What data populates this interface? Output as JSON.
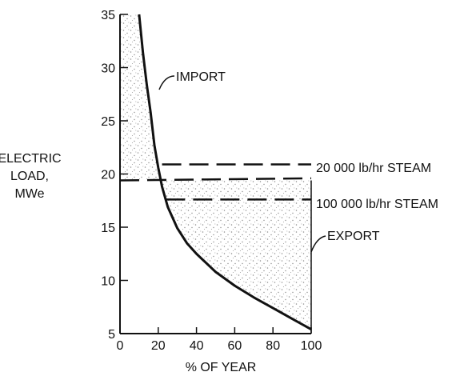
{
  "chart_data": {
    "type": "line",
    "xlabel": "% OF YEAR",
    "ylabel": [
      "ELECTRIC",
      "LOAD,",
      "MWe"
    ],
    "xlim": [
      0,
      100
    ],
    "ylim": [
      5,
      35
    ],
    "xticks": [
      0,
      20,
      40,
      60,
      80,
      100
    ],
    "yticks": [
      5,
      10,
      15,
      20,
      25,
      30,
      35
    ],
    "grid": false,
    "series": [
      {
        "name": "",
        "style": "solid",
        "x": [
          10,
          12,
          14,
          16,
          18,
          20,
          22,
          25,
          30,
          35,
          40,
          50,
          60,
          70,
          80,
          90,
          100
        ],
        "y": [
          35,
          31.4,
          28.4,
          25.8,
          22.7,
          20.6,
          18.8,
          16.9,
          14.9,
          13.5,
          12.5,
          10.8,
          9.5,
          8.4,
          7.4,
          6.4,
          5.4
        ]
      },
      {
        "name": "20 000 lb/hr STEAM",
        "style": "dashed",
        "x": [
          22,
          100
        ],
        "y": [
          20.9,
          20.9
        ]
      },
      {
        "name": "",
        "style": "dashed",
        "x": [
          0,
          100
        ],
        "y": [
          19.4,
          19.6
        ]
      },
      {
        "name": "100 000 lb/hr STEAM",
        "style": "dashed",
        "x": [
          24,
          100
        ],
        "y": [
          17.6,
          17.6
        ]
      }
    ],
    "annotations": [
      {
        "id": "import",
        "text": "IMPORT"
      },
      {
        "id": "steam20",
        "text": "20 000 lb/hr STEAM"
      },
      {
        "id": "steam100",
        "text": "100 000 lb/hr STEAM"
      },
      {
        "id": "export",
        "text": "EXPORT"
      }
    ],
    "shaded_regions": [
      "IMPORT",
      "EXPORT"
    ]
  },
  "colors": {
    "ink": "#111111",
    "stipple": "#8c8c8c",
    "background": "#ffffff"
  }
}
